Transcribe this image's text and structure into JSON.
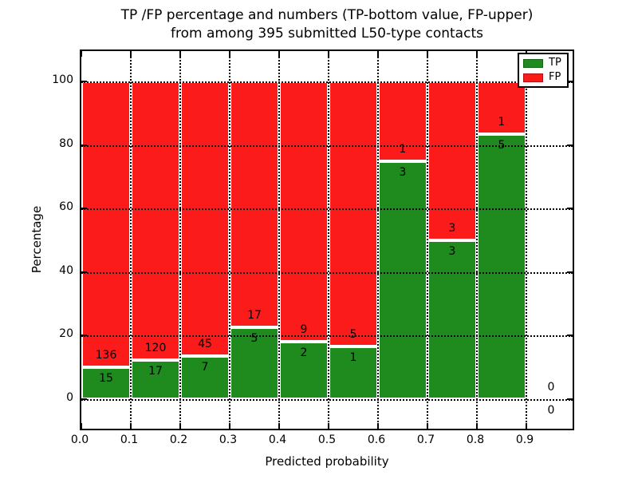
{
  "title": {
    "line1": "TP /FP percentage and numbers (TP-bottom value, FP-upper)",
    "line2": "from among 395 submitted L50-type contacts"
  },
  "axes": {
    "x_label": "Predicted probability",
    "y_label": "Percentage",
    "x_tick_labels": [
      "0.0",
      "0.1",
      "0.2",
      "0.3",
      "0.4",
      "0.5",
      "0.6",
      "0.7",
      "0.8",
      "0.9"
    ],
    "y_tick_labels": [
      "0",
      "20",
      "40",
      "60",
      "80",
      "100"
    ]
  },
  "legend": {
    "items": [
      {
        "label": "TP",
        "color": "#1f8b1f"
      },
      {
        "label": "FP",
        "color": "#fb1b1b"
      }
    ]
  },
  "colors": {
    "tp": "#1f8b1f",
    "fp": "#fb1b1b",
    "grid": "#000000",
    "frame": "#000000",
    "bar_edge": "#ffffff",
    "background": "#ffffff"
  },
  "chart_data": {
    "type": "bar",
    "stacked": true,
    "units": "percent of bin total",
    "title": "TP /FP percentage and numbers (TP-bottom value, FP-upper) from among 395 submitted L50-type contacts",
    "xlabel": "Predicted probability",
    "ylabel": "Percentage",
    "xlim": [
      0.0,
      1.0
    ],
    "ylim_display": [
      -10,
      110
    ],
    "yticks": [
      0,
      20,
      40,
      60,
      80,
      100
    ],
    "bin_width": 0.1,
    "grid": "dotted black, drawn over bars",
    "legend_position": "upper right",
    "total_contacts": 395,
    "bins": [
      {
        "x_start": 0.0,
        "x_end": 0.1,
        "tp_count": 15,
        "fp_count": 136,
        "tp_percent": 9.9,
        "fp_percent": 90.1
      },
      {
        "x_start": 0.1,
        "x_end": 0.2,
        "tp_count": 17,
        "fp_count": 120,
        "tp_percent": 12.4,
        "fp_percent": 87.6
      },
      {
        "x_start": 0.2,
        "x_end": 0.3,
        "tp_count": 7,
        "fp_count": 45,
        "tp_percent": 13.5,
        "fp_percent": 86.5
      },
      {
        "x_start": 0.3,
        "x_end": 0.4,
        "tp_count": 5,
        "fp_count": 17,
        "tp_percent": 22.7,
        "fp_percent": 77.3
      },
      {
        "x_start": 0.4,
        "x_end": 0.5,
        "tp_count": 2,
        "fp_count": 9,
        "tp_percent": 18.2,
        "fp_percent": 81.8
      },
      {
        "x_start": 0.5,
        "x_end": 0.6,
        "tp_count": 1,
        "fp_count": 5,
        "tp_percent": 16.7,
        "fp_percent": 83.3
      },
      {
        "x_start": 0.6,
        "x_end": 0.7,
        "tp_count": 3,
        "fp_count": 1,
        "tp_percent": 75.0,
        "fp_percent": 25.0
      },
      {
        "x_start": 0.7,
        "x_end": 0.8,
        "tp_count": 3,
        "fp_count": 3,
        "tp_percent": 50.0,
        "fp_percent": 50.0
      },
      {
        "x_start": 0.8,
        "x_end": 0.9,
        "tp_count": 5,
        "fp_count": 1,
        "tp_percent": 83.3,
        "fp_percent": 16.7
      },
      {
        "x_start": 0.9,
        "x_end": 1.0,
        "tp_count": 0,
        "fp_count": 0,
        "tp_percent": 0,
        "fp_percent": 0
      }
    ]
  }
}
